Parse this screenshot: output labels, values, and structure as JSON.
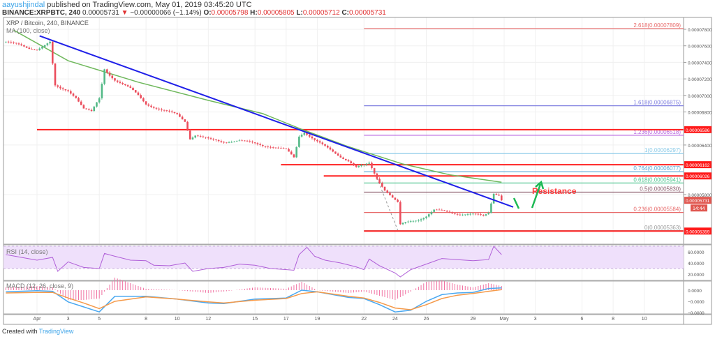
{
  "header": {
    "author": "aayushjindal",
    "published": " published on TradingView.com, May 01, 2019 03:45:20 UTC",
    "symbol": "BINANCE:XRPBTC, 240",
    "last": "0.00005731",
    "change": "−0.00000066 (−1.14%)",
    "o_label": "O:",
    "o": "0.00005798",
    "h_label": "H:",
    "h": "0.00005805",
    "l_label": "L:",
    "l": "0.00005712",
    "c_label": "C:",
    "c": "0.00005731",
    "down_arrow": "▼"
  },
  "legend": {
    "title": "XRP / Bitcoin, 240, BINANCE",
    "ma": "MA (100, close)",
    "rsi": "RSI (14, close)",
    "macd": "MACD (12, 26, close, 9)"
  },
  "colors": {
    "up": "#53b987",
    "down": "#eb4d5c",
    "ma": "#6fb85c",
    "trendline": "#1f1fe8",
    "support_resistance": "#ff2020",
    "rsi": "#b05fd8",
    "rsi_band": "#efe0fb",
    "macd": "#4aa8f0",
    "signal": "#f59a4a",
    "hist": "#f06fa0",
    "annotation": "#ff3b3b",
    "arrow": "#1db954"
  },
  "annotation": {
    "resistance": "Resistance"
  },
  "footer": {
    "created_with": "Created with",
    "brand": "TradingView"
  },
  "chart_data": {
    "type": "candlestick",
    "interval": "240",
    "price_axis": {
      "ticks": [
        {
          "label": "0.00007800",
          "value": 7.8e-05
        },
        {
          "label": "0.00007600",
          "value": 7.6e-05
        },
        {
          "label": "0.00007400",
          "value": 7.4e-05
        },
        {
          "label": "0.00007200",
          "value": 7.2e-05
        },
        {
          "label": "0.00007000",
          "value": 7e-05
        },
        {
          "label": "0.00006800",
          "value": 6.8e-05
        },
        {
          "label": "0.00006400",
          "value": 6.4e-05
        },
        {
          "label": "0.00005800",
          "value": 5.8e-05
        }
      ]
    },
    "time_axis": [
      {
        "label": "Apr",
        "date": "2019-04-01 00:00"
      },
      {
        "label": "3",
        "date": "2019-04-03 00:00"
      },
      {
        "label": "5",
        "date": "2019-04-05 00:00"
      },
      {
        "label": "8",
        "date": "2019-04-08 00:00"
      },
      {
        "label": "10",
        "date": "2019-04-10 00:00"
      },
      {
        "label": "12",
        "date": "2019-04-12 00:00"
      },
      {
        "label": "15",
        "date": "2019-04-15 00:00"
      },
      {
        "label": "17",
        "date": "2019-04-17 00:00"
      },
      {
        "label": "19",
        "date": "2019-04-19 00:00"
      },
      {
        "label": "22",
        "date": "2019-04-22 00:00"
      },
      {
        "label": "24",
        "date": "2019-04-24 00:00"
      },
      {
        "label": "26",
        "date": "2019-04-26 00:00"
      },
      {
        "label": "29",
        "date": "2019-04-29 00:00"
      },
      {
        "label": "May",
        "date": "2019-05-01 00:00"
      },
      {
        "label": "3",
        "date": "2019-05-03 00:00"
      },
      {
        "label": "6",
        "date": "2019-05-06 00:00"
      },
      {
        "label": "8",
        "date": "2019-05-08 00:00"
      },
      {
        "label": "10",
        "date": "2019-05-10 00:00"
      }
    ],
    "close_path": [
      [
        "2019-03-30 00:00",
        7.65e-05
      ],
      [
        "2019-03-31 00:00",
        7.6e-05
      ],
      [
        "2019-03-31 12:00",
        7.57e-05
      ],
      [
        "2019-04-01 00:00",
        7.56e-05
      ],
      [
        "2019-04-01 20:00",
        7.64e-05
      ],
      [
        "2019-04-02 04:00",
        7.11e-05
      ],
      [
        "2019-04-02 12:00",
        7.08e-05
      ],
      [
        "2019-04-03 00:00",
        7.06e-05
      ],
      [
        "2019-04-03 12:00",
        6.98e-05
      ],
      [
        "2019-04-04 00:00",
        6.84e-05
      ],
      [
        "2019-04-04 12:00",
        6.8e-05
      ],
      [
        "2019-04-05 00:00",
        6.96e-05
      ],
      [
        "2019-04-05 08:00",
        7.32e-05
      ],
      [
        "2019-04-05 16:00",
        7.25e-05
      ],
      [
        "2019-04-06 00:00",
        7.19e-05
      ],
      [
        "2019-04-07 00:00",
        7.08e-05
      ],
      [
        "2019-04-07 12:00",
        7e-05
      ],
      [
        "2019-04-08 00:00",
        6.9e-05
      ],
      [
        "2019-04-09 00:00",
        6.82e-05
      ],
      [
        "2019-04-10 00:00",
        6.77e-05
      ],
      [
        "2019-04-10 12:00",
        6.69e-05
      ],
      [
        "2019-04-10 20:00",
        6.48e-05
      ],
      [
        "2019-04-11 04:00",
        6.52e-05
      ],
      [
        "2019-04-12 00:00",
        6.47e-05
      ],
      [
        "2019-04-13 00:00",
        6.44e-05
      ],
      [
        "2019-04-14 00:00",
        6.45e-05
      ],
      [
        "2019-04-15 00:00",
        6.42e-05
      ],
      [
        "2019-04-16 00:00",
        6.38e-05
      ],
      [
        "2019-04-17 00:00",
        6.34e-05
      ],
      [
        "2019-04-17 12:00",
        6.25e-05
      ],
      [
        "2019-04-17 20:00",
        6.51e-05
      ],
      [
        "2019-04-18 04:00",
        6.56e-05
      ],
      [
        "2019-04-18 20:00",
        6.46e-05
      ],
      [
        "2019-04-19 12:00",
        6.38e-05
      ],
      [
        "2019-04-20 12:00",
        6.26e-05
      ],
      [
        "2019-04-21 00:00",
        6.21e-05
      ],
      [
        "2019-04-21 12:00",
        6.13e-05
      ],
      [
        "2019-04-22 00:00",
        6.15e-05
      ],
      [
        "2019-04-22 08:00",
        6.18e-05
      ],
      [
        "2019-04-22 20:00",
        6e-05
      ],
      [
        "2019-04-23 08:00",
        5.86e-05
      ],
      [
        "2019-04-23 20:00",
        5.76e-05
      ],
      [
        "2019-04-24 04:00",
        5.7e-05
      ],
      [
        "2019-04-24 08:00",
        5.43e-05
      ],
      [
        "2019-04-24 16:00",
        5.46e-05
      ],
      [
        "2019-04-25 00:00",
        5.48e-05
      ],
      [
        "2019-04-25 12:00",
        5.5e-05
      ],
      [
        "2019-04-26 00:00",
        5.54e-05
      ],
      [
        "2019-04-26 12:00",
        5.61e-05
      ],
      [
        "2019-04-27 00:00",
        5.6e-05
      ],
      [
        "2019-04-28 00:00",
        5.57e-05
      ],
      [
        "2019-04-29 00:00",
        5.56e-05
      ],
      [
        "2019-04-29 16:00",
        5.54e-05
      ],
      [
        "2019-04-30 00:00",
        5.58e-05
      ],
      [
        "2019-04-30 08:00",
        5.82e-05
      ],
      [
        "2019-04-30 16:00",
        5.8e-05
      ],
      [
        "2019-04-30 20:00",
        5.731e-05
      ]
    ],
    "ma100": [
      [
        "2019-03-30 12:00",
        7.79e-05
      ],
      [
        "2019-04-03 00:00",
        7.42e-05
      ],
      [
        "2019-04-07 12:00",
        7.16e-05
      ],
      [
        "2019-04-12 00:00",
        6.94e-05
      ],
      [
        "2019-04-15 12:00",
        6.78e-05
      ],
      [
        "2019-04-18 00:00",
        6.59e-05
      ],
      [
        "2019-04-21 00:00",
        6.38e-05
      ],
      [
        "2019-04-24 12:00",
        6.17e-05
      ],
      [
        "2019-04-27 12:00",
        6.04e-05
      ],
      [
        "2019-04-30 20:00",
        5.95e-05
      ]
    ],
    "trendline": [
      [
        "2019-04-01 04:00",
        7.72e-05
      ],
      [
        "2019-05-01 14:00",
        5.65e-05
      ]
    ],
    "horizontal_lines": [
      {
        "from": "2019-04-01 00:00",
        "price": 6.586e-05
      },
      {
        "from": "2019-04-16 16:00",
        "price": 6.162e-05
      },
      {
        "from": "2019-04-19 10:00",
        "price": 6.026e-05
      },
      {
        "from": "2019-04-22 00:00",
        "price": 5.359e-05
      }
    ],
    "fib_from": "2019-04-22 00:00",
    "fib_anchor_line": [
      [
        "2019-04-22 20:00",
        6e-05
      ],
      [
        "2019-04-24 04:00",
        5.37e-05
      ]
    ],
    "fib_levels": [
      {
        "label": "2.618(0.00007809)",
        "price": 7.809e-05,
        "color": "#e86a6a"
      },
      {
        "label": "1.618(0.00006875)",
        "price": 6.875e-05,
        "color": "#8080e0"
      },
      {
        "label": "1.236(0.00006518)",
        "price": 6.518e-05,
        "color": "#b866e0"
      },
      {
        "label": "1(0.00006297)",
        "price": 6.297e-05,
        "color": "#8ccbe8"
      },
      {
        "label": "0.764(0.00006077)",
        "price": 6.077e-05,
        "color": "#58a8d8"
      },
      {
        "label": "0.618(0.00005941)",
        "price": 5.941e-05,
        "color": "#4cc48e"
      },
      {
        "label": "0.5(0.00005830)",
        "price": 5.83e-05,
        "color": "#8a5a6a"
      },
      {
        "label": "0.236(0.00005584)",
        "price": 5.584e-05,
        "color": "#e86a6a"
      },
      {
        "label": "0(0.00005363)",
        "price": 5.363e-05,
        "color": "#999999"
      }
    ],
    "price_tags": [
      {
        "text": "0.00006586",
        "price": 6.586e-05,
        "color": "#ff1a1a",
        "sub": ""
      },
      {
        "text": "0.00006162",
        "price": 6.162e-05,
        "color": "#ff1a1a",
        "sub": ""
      },
      {
        "text": "0.00006026",
        "price": 6.026e-05,
        "color": "#ff1a1a",
        "sub": ""
      },
      {
        "text": "0.00005731",
        "price": 5.731e-05,
        "color": "#e0564f",
        "sub": "14:44"
      },
      {
        "text": "0.00005359",
        "price": 5.359e-05,
        "color": "#ff1a1a",
        "sub": ""
      }
    ],
    "rsi": {
      "ticks": [
        {
          "label": "60.0000",
          "value": 60
        },
        {
          "label": "40.0000",
          "value": 40
        },
        {
          "label": "20.0000",
          "value": 20
        }
      ],
      "band": [
        30,
        70
      ],
      "values": [
        [
          "2019-03-30 00:00",
          55
        ],
        [
          "2019-03-31 00:00",
          50
        ],
        [
          "2019-04-01 00:00",
          45
        ],
        [
          "2019-04-02 00:00",
          50
        ],
        [
          "2019-04-02 08:00",
          25
        ],
        [
          "2019-04-03 00:00",
          42
        ],
        [
          "2019-04-04 00:00",
          32
        ],
        [
          "2019-04-05 00:00",
          30
        ],
        [
          "2019-04-05 08:00",
          57
        ],
        [
          "2019-04-06 00:00",
          52
        ],
        [
          "2019-04-07 00:00",
          45
        ],
        [
          "2019-04-08 00:00",
          44
        ],
        [
          "2019-04-08 12:00",
          36
        ],
        [
          "2019-04-09 12:00",
          35
        ],
        [
          "2019-04-10 12:00",
          40
        ],
        [
          "2019-04-11 00:00",
          25
        ],
        [
          "2019-04-12 00:00",
          30
        ],
        [
          "2019-04-13 00:00",
          32
        ],
        [
          "2019-04-14 00:00",
          38
        ],
        [
          "2019-04-15 00:00",
          36
        ],
        [
          "2019-04-16 00:00",
          30
        ],
        [
          "2019-04-17 12:00",
          27
        ],
        [
          "2019-04-17 20:00",
          55
        ],
        [
          "2019-04-18 08:00",
          68
        ],
        [
          "2019-04-18 20:00",
          52
        ],
        [
          "2019-04-19 12:00",
          45
        ],
        [
          "2019-04-20 12:00",
          40
        ],
        [
          "2019-04-21 12:00",
          33
        ],
        [
          "2019-04-22 00:00",
          28
        ],
        [
          "2019-04-22 08:00",
          47
        ],
        [
          "2019-04-23 00:00",
          35
        ],
        [
          "2019-04-24 00:00",
          22
        ],
        [
          "2019-04-24 08:00",
          15
        ],
        [
          "2019-04-25 00:00",
          28
        ],
        [
          "2019-04-26 00:00",
          38
        ],
        [
          "2019-04-27 00:00",
          48
        ],
        [
          "2019-04-28 00:00",
          46
        ],
        [
          "2019-04-29 00:00",
          44
        ],
        [
          "2019-04-30 00:00",
          46
        ],
        [
          "2019-04-30 08:00",
          70
        ],
        [
          "2019-04-30 20:00",
          55
        ]
      ]
    },
    "macd": {
      "ticks": [
        {
          "label": "0.0000",
          "value": 0
        },
        {
          "label": "−0.0000",
          "value": -2e-07
        },
        {
          "label": "−0.0000",
          "value": -4e-07
        }
      ],
      "dates": [
        "2019-03-30 00:00",
        "2019-04-01 00:00",
        "2019-04-02 00:00",
        "2019-04-03 00:00",
        "2019-04-04 00:00",
        "2019-04-05 00:00",
        "2019-04-06 00:00",
        "2019-04-08 00:00",
        "2019-04-10 00:00",
        "2019-04-12 00:00",
        "2019-04-13 00:00",
        "2019-04-15 00:00",
        "2019-04-17 00:00",
        "2019-04-18 00:00",
        "2019-04-19 00:00",
        "2019-04-21 00:00",
        "2019-04-22 00:00",
        "2019-04-23 00:00",
        "2019-04-24 00:00",
        "2019-04-25 00:00",
        "2019-04-26 00:00",
        "2019-04-27 00:00",
        "2019-04-28 00:00",
        "2019-04-29 00:00",
        "2019-04-30 00:00",
        "2019-04-30 20:00"
      ],
      "macd": [
        -3e-08,
        -1e-08,
        -2e-08,
        -2.1e-07,
        -3e-07,
        -3.9e-07,
        -1.1e-07,
        -1.1e-07,
        -1.6e-07,
        -2.3e-07,
        -2.4e-07,
        -1.6e-07,
        -1.4e-07,
        0,
        -3e-08,
        -1.3e-07,
        -1.5e-07,
        -2.6e-07,
        -3.9e-07,
        -3.6e-07,
        -2e-07,
        -8e-08,
        -5e-08,
        -4e-08,
        3e-08,
        4e-08
      ],
      "signal": [
        -5e-08,
        -4e-08,
        -4e-08,
        -1.4e-07,
        -2.3e-07,
        -3.3e-07,
        -2e-07,
        -1.2e-07,
        -1.6e-07,
        -2.1e-07,
        -2.3e-07,
        -1.8e-07,
        -1.5e-07,
        -6e-08,
        -3e-08,
        -1.1e-07,
        -1.4e-07,
        -2.2e-07,
        -3.2e-07,
        -3.5e-07,
        -2.6e-07,
        -1.5e-07,
        -9e-08,
        -6e-08,
        -2e-08,
        1e-08
      ]
    }
  }
}
